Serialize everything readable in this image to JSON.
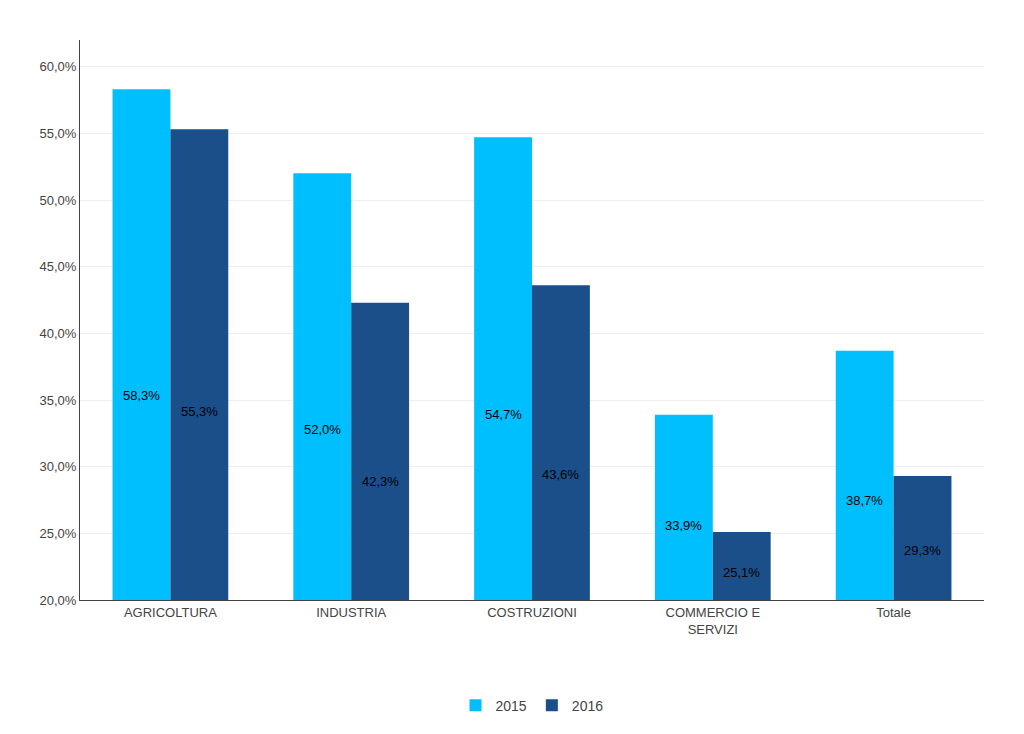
{
  "chart_data": {
    "type": "bar",
    "categories": [
      "AGRICOLTURA",
      "INDUSTRIA",
      "COSTRUZIONI",
      "COMMERCIO E\nSERVIZI",
      "Totale"
    ],
    "series": [
      {
        "name": "2015",
        "color": "#00BFFF",
        "values": [
          58.3,
          52.0,
          54.7,
          33.9,
          38.7
        ],
        "value_labels": [
          "58,3%",
          "52,0%",
          "54,7%",
          "33,9%",
          "38,7%"
        ]
      },
      {
        "name": "2016",
        "color": "#1B4F8A",
        "values": [
          55.3,
          42.3,
          43.6,
          25.1,
          29.3
        ],
        "value_labels": [
          "55,3%",
          "42,3%",
          "43,6%",
          "25,1%",
          "29,3%"
        ]
      }
    ],
    "ylim": [
      20.0,
      62.0
    ],
    "yticks": [
      {
        "value": 20.0,
        "label": "20,0%"
      },
      {
        "value": 25.0,
        "label": "25,0%"
      },
      {
        "value": 30.0,
        "label": "30,0%"
      },
      {
        "value": 35.0,
        "label": "35,0%"
      },
      {
        "value": 40.0,
        "label": "40,0%"
      },
      {
        "value": 45.0,
        "label": "45,0%"
      },
      {
        "value": 50.0,
        "label": "50,0%"
      },
      {
        "value": 55.0,
        "label": "55,0%"
      },
      {
        "value": 60.0,
        "label": "60,0%"
      }
    ],
    "grid": true,
    "legend": "bottom",
    "data_labels": true
  }
}
